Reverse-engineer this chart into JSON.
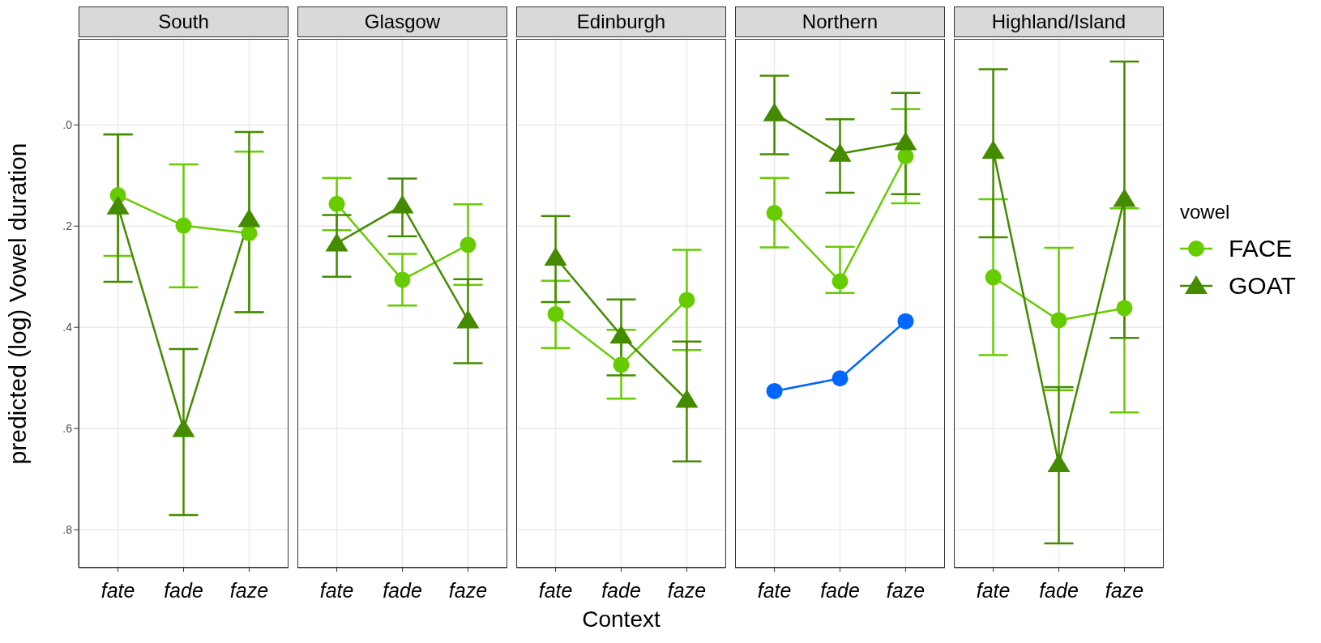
{
  "chart_data": [
    {
      "type": "line",
      "title": "South",
      "ylabel": "predicted (log) Vowel duration",
      "categories": [
        "fate",
        "fade",
        "faze"
      ],
      "ylim": [
        0.875,
        -0.17
      ],
      "yticks": [
        {
          "value": 0,
          "label": ".0"
        },
        {
          "value": 0.2,
          "label": ".2"
        },
        {
          "value": 0.4,
          "label": ".4"
        },
        {
          "value": 0.6,
          "label": ".6"
        },
        {
          "value": 0.8,
          "label": ".8"
        }
      ],
      "grid": true,
      "series": [
        {
          "color": "#66cc00",
          "marker": "circle",
          "values": [
            0.139,
            0.199,
            0.214
          ],
          "errors": [
            [
              0.019,
              0.259
            ],
            [
              0.078,
              0.321
            ],
            [
              0.053,
              0.37
            ]
          ]
        },
        {
          "color": "#448b00",
          "marker": "triangle",
          "values": [
            0.161,
            0.601,
            0.186
          ],
          "errors": [
            [
              0.019,
              0.31
            ],
            [
              0.443,
              0.771
            ],
            [
              0.014,
              0.37
            ]
          ]
        }
      ]
    },
    {
      "type": "line",
      "title": "Glasgow",
      "categories": [
        "fate",
        "fade",
        "faze"
      ],
      "ylim": [
        0.875,
        -0.17
      ],
      "yticks": [
        {
          "value": 0,
          "label": null
        },
        {
          "value": 0.2,
          "label": null
        },
        {
          "value": 0.4,
          "label": null
        },
        {
          "value": 0.6,
          "label": null
        },
        {
          "value": 0.8,
          "label": null
        }
      ],
      "grid": true,
      "tick_labels": "x",
      "series": [
        {
          "color": "#66cc00",
          "marker": "circle",
          "values": [
            0.156,
            0.306,
            0.237
          ],
          "errors": [
            [
              0.105,
              0.208
            ],
            [
              0.255,
              0.357
            ],
            [
              0.157,
              0.316
            ]
          ]
        },
        {
          "color": "#448b00",
          "marker": "triangle",
          "values": [
            0.234,
            0.159,
            0.386
          ],
          "errors": [
            [
              0.178,
              0.3
            ],
            [
              0.106,
              0.22
            ],
            [
              0.305,
              0.471
            ]
          ]
        }
      ]
    },
    {
      "type": "line",
      "title": "Edinburgh",
      "xlabel": "Context",
      "categories": [
        "fate",
        "fade",
        "faze"
      ],
      "ylim": [
        0.875,
        -0.17
      ],
      "yticks": [
        {
          "value": 0,
          "label": null
        },
        {
          "value": 0.2,
          "label": null
        },
        {
          "value": 0.4,
          "label": null
        },
        {
          "value": 0.6,
          "label": null
        },
        {
          "value": 0.8,
          "label": null
        }
      ],
      "grid": true,
      "tick_labels": "x",
      "series": [
        {
          "color": "#66cc00",
          "marker": "circle",
          "values": [
            0.374,
            0.474,
            0.346
          ],
          "errors": [
            [
              0.308,
              0.441
            ],
            [
              0.405,
              0.541
            ],
            [
              0.247,
              0.445
            ]
          ]
        },
        {
          "color": "#448b00",
          "marker": "triangle",
          "values": [
            0.262,
            0.416,
            0.543
          ],
          "errors": [
            [
              0.18,
              0.35
            ],
            [
              0.345,
              0.495
            ],
            [
              0.428,
              0.665
            ]
          ]
        }
      ]
    },
    {
      "type": "line",
      "title": "Northern",
      "categories": [
        "fate",
        "fade",
        "faze"
      ],
      "ylim": [
        0.875,
        -0.17
      ],
      "yticks": [
        {
          "value": 0,
          "label": null
        },
        {
          "value": 0.2,
          "label": null
        },
        {
          "value": 0.4,
          "label": null
        },
        {
          "value": 0.6,
          "label": null
        },
        {
          "value": 0.8,
          "label": null
        }
      ],
      "grid": true,
      "tick_labels": "x",
      "series": [
        {
          "color": "#66cc00",
          "marker": "circle",
          "values": [
            0.174,
            0.309,
            0.062
          ],
          "errors": [
            [
              0.105,
              0.242
            ],
            [
              0.241,
              0.332
            ],
            [
              -0.031,
              0.155
            ]
          ]
        },
        {
          "color": "#448b00",
          "marker": "triangle",
          "values": [
            -0.023,
            0.057,
            0.034
          ],
          "errors": [
            [
              -0.097,
              0.058
            ],
            [
              -0.011,
              0.134
            ],
            [
              -0.063,
              0.137
            ]
          ]
        },
        {
          "color": "#0066ff",
          "marker": "circle",
          "values": [
            0.526,
            0.501,
            0.388
          ]
        }
      ]
    },
    {
      "type": "line",
      "title": "Highland/Island",
      "categories": [
        "fate",
        "fade",
        "faze"
      ],
      "ylim": [
        0.875,
        -0.17
      ],
      "yticks": [
        {
          "value": 0,
          "label": null
        },
        {
          "value": 0.2,
          "label": null
        },
        {
          "value": 0.4,
          "label": null
        },
        {
          "value": 0.6,
          "label": null
        },
        {
          "value": 0.8,
          "label": null
        }
      ],
      "grid": true,
      "tick_labels": "x",
      "legend": "right",
      "legend_title": "vowel",
      "series": [
        {
          "name": "FACE",
          "color": "#66cc00",
          "marker": "circle",
          "values": [
            0.301,
            0.386,
            0.362
          ],
          "errors": [
            [
              0.147,
              0.455
            ],
            [
              0.243,
              0.524
            ],
            [
              0.165,
              0.568
            ]
          ]
        },
        {
          "name": "GOAT",
          "color": "#448b00",
          "marker": "triangle",
          "values": [
            0.051,
            0.67,
            0.146
          ],
          "errors": [
            [
              -0.11,
              0.222
            ],
            [
              0.518,
              0.827
            ],
            [
              -0.125,
              0.421
            ]
          ]
        }
      ]
    }
  ]
}
